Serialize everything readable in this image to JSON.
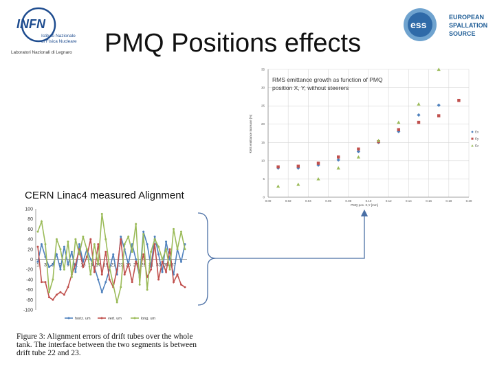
{
  "slide": {
    "title": "PMQ Positions effects",
    "cern_label": "CERN Linac4 measured Alignment",
    "caption": "Figure 3: Alignment errors of drift tubes over the whole tank. The interface between the two segments is between drift tube 22 and 23."
  },
  "logos": {
    "infn": {
      "word": "INFN",
      "line1": "Istituto Nazionale",
      "line2": "di Fisica Nucleare",
      "line3": "Laboratori Nazionali di Legnaro",
      "color": "#1e4c8f"
    },
    "ess": {
      "word": "ess",
      "line1": "EUROPEAN",
      "line2": "SPALLATION",
      "line3": "SOURCE",
      "color": "#1f5d96"
    }
  },
  "chart_data": [
    {
      "type": "scatter",
      "title": "RMS emittance growth as function of PMQ position X, Y, without steerers",
      "xlabel": "PMQ pos. X,Y [mm]",
      "ylabel": "RMS emittance increase [%]",
      "xlim": [
        0,
        0.2
      ],
      "ylim": [
        0,
        35
      ],
      "x_ticks": [
        "0.00",
        "0.02",
        "0.04",
        "0.06",
        "0.08",
        "0.10",
        "0.12",
        "0.14",
        "0.16",
        "0.18",
        "0.20"
      ],
      "y_ticks": [
        "0",
        "5",
        "10",
        "15",
        "20",
        "25",
        "30",
        "35"
      ],
      "grid": true,
      "legend_position": "right",
      "series": [
        {
          "name": "Ex",
          "color": "#4f81bd",
          "marker": "diamond",
          "x": [
            0.01,
            0.03,
            0.05,
            0.07,
            0.09,
            0.11,
            0.13,
            0.15,
            0.17
          ],
          "y": [
            8.0,
            8.0,
            8.8,
            10.2,
            12.5,
            15.0,
            18.0,
            22.5,
            25.2
          ]
        },
        {
          "name": "Ey",
          "color": "#c0504d",
          "marker": "square",
          "x": [
            0.01,
            0.03,
            0.05,
            0.07,
            0.09,
            0.11,
            0.13,
            0.15,
            0.17,
            0.19
          ],
          "y": [
            8.3,
            8.5,
            9.3,
            11.0,
            13.2,
            15.2,
            18.5,
            20.5,
            22.3,
            26.5
          ]
        },
        {
          "name": "Ez",
          "color": "#9bbb59",
          "marker": "triangle",
          "x": [
            0.01,
            0.03,
            0.05,
            0.07,
            0.09,
            0.11,
            0.13,
            0.15,
            0.17
          ],
          "y": [
            3.0,
            3.5,
            5.0,
            8.0,
            11.0,
            15.5,
            20.5,
            25.5,
            35.0
          ]
        }
      ]
    },
    {
      "type": "line",
      "title": "",
      "ylim": [
        -100,
        100
      ],
      "y_ticks": [
        "100",
        "80",
        "60",
        "40",
        "20",
        "0",
        "-20",
        "-40",
        "-60",
        "-80",
        "-100"
      ],
      "x_tick_labels": [
        "1",
        "3",
        "5",
        "7",
        "9",
        "11",
        "13",
        "15",
        "17",
        "19",
        "21",
        "23",
        "25",
        "27",
        "29",
        "31",
        "33",
        "35",
        "37"
      ],
      "x_count": 40,
      "legend_position": "bottom",
      "series": [
        {
          "name": "horiz. um",
          "color": "#4f81bd",
          "values": [
            -5,
            30,
            5,
            -15,
            -10,
            10,
            -20,
            25,
            -10,
            15,
            -25,
            30,
            -5,
            20,
            0,
            -15,
            -40,
            -65,
            -45,
            -20,
            10,
            -30,
            45,
            20,
            -10,
            30,
            0,
            -35,
            55,
            30,
            -15,
            45,
            10,
            -25,
            35,
            0,
            -30,
            20,
            -5,
            30
          ]
        },
        {
          "name": "vert. um",
          "color": "#c0504d",
          "values": [
            25,
            -45,
            -45,
            -75,
            -80,
            -70,
            -65,
            -70,
            -55,
            -30,
            -10,
            20,
            -15,
            5,
            40,
            -25,
            30,
            -30,
            15,
            -40,
            -55,
            -20,
            40,
            -30,
            -10,
            -45,
            -5,
            -25,
            10,
            -35,
            -20,
            30,
            -40,
            -5,
            -25,
            20,
            -45,
            -30,
            -50,
            -55
          ]
        },
        {
          "name": "long. um",
          "color": "#9bbb59",
          "values": [
            55,
            75,
            30,
            -65,
            -40,
            40,
            20,
            -20,
            35,
            -35,
            40,
            10,
            45,
            20,
            -30,
            30,
            -10,
            90,
            40,
            -15,
            -50,
            -85,
            -55,
            30,
            45,
            15,
            70,
            -50,
            50,
            -60,
            15,
            40,
            25,
            0,
            20,
            -20,
            60,
            20,
            55,
            20
          ]
        }
      ]
    }
  ]
}
